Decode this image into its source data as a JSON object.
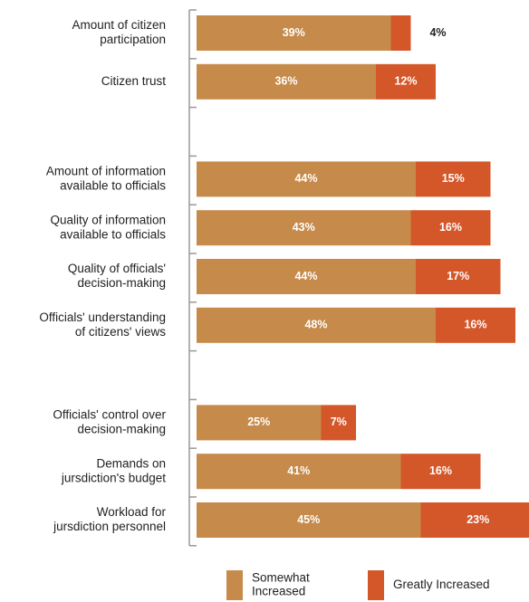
{
  "chart_data": {
    "type": "bar",
    "orientation": "horizontal",
    "stacked": true,
    "categories": [
      [
        "Amount of citizen",
        "participation"
      ],
      [
        "Citizen trust"
      ],
      null,
      [
        "Amount of information",
        "available to officials"
      ],
      [
        "Quality of information",
        "available to officials"
      ],
      [
        "Quality of officials'",
        "decision-making"
      ],
      [
        "Officials' understanding",
        "of citizens' views"
      ],
      null,
      [
        "Officials' control over",
        "decision-making"
      ],
      [
        "Demands on",
        "jursdiction's budget"
      ],
      [
        "Workload for",
        "jursdiction personnel"
      ]
    ],
    "series": [
      {
        "name": "Somewhat Increased",
        "color": "#c68a4a",
        "values": [
          39,
          36,
          null,
          44,
          43,
          44,
          48,
          null,
          25,
          41,
          45
        ],
        "labels": [
          "39%",
          "36%",
          null,
          "44%",
          "43%",
          "44%",
          "48%",
          null,
          "25%",
          "41%",
          "45%"
        ]
      },
      {
        "name": "Greatly Increased",
        "color": "#d4572a",
        "values": [
          4,
          12,
          null,
          15,
          16,
          17,
          16,
          null,
          7,
          16,
          23
        ],
        "labels": [
          "4%",
          "12%",
          null,
          "15%",
          "16%",
          "17%",
          "16%",
          null,
          "7%",
          "16%",
          "23%"
        ]
      }
    ],
    "legend": {
      "position": "bottom",
      "items": [
        {
          "lines": [
            "Somewhat",
            "Increased"
          ],
          "color": "#c68a4a"
        },
        {
          "lines": [
            "Greatly Increased"
          ],
          "color": "#d4572a"
        }
      ]
    },
    "xlim": [
      0,
      68
    ],
    "grid": false
  }
}
